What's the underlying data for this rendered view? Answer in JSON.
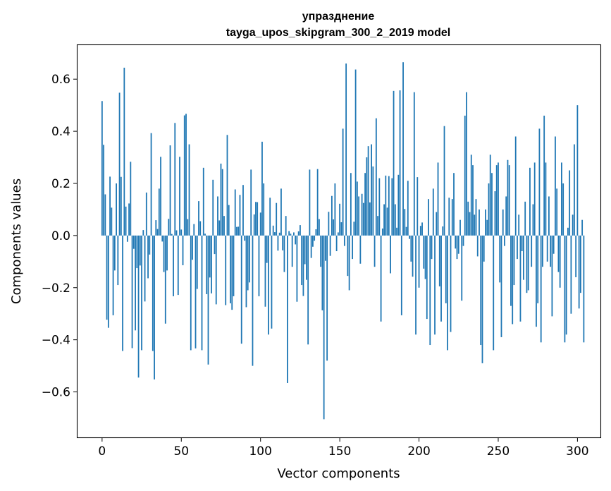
{
  "chart_data": {
    "type": "bar",
    "title": "упразднение",
    "subtitle": "tayga_upos_skipgram_300_2_2019 model",
    "xlabel": "Vector components",
    "ylabel": "Components values",
    "xlim": [
      -15.5,
      314.5
    ],
    "ylim": [
      -0.7745,
      0.7305
    ],
    "xticks": [
      0,
      50,
      100,
      150,
      200,
      250,
      300
    ],
    "yticks": [
      -0.6,
      -0.4,
      -0.2,
      0.0,
      0.2,
      0.4,
      0.6
    ],
    "ytick_labels": [
      "−0.6",
      "−0.4",
      "−0.2",
      "0.0",
      "0.2",
      "0.4",
      "0.6"
    ],
    "xtick_labels": [
      "0",
      "50",
      "100",
      "150",
      "200",
      "250",
      "300"
    ],
    "bar_color": "#1f77b4",
    "grid": false,
    "series": [
      {
        "name": "components",
        "x_start": 0,
        "values": [
          0.516,
          0.348,
          0.158,
          -0.323,
          -0.354,
          0.226,
          0.107,
          -0.306,
          -0.134,
          0.2,
          -0.19,
          0.548,
          0.225,
          -0.443,
          0.644,
          0.111,
          -0.024,
          0.123,
          0.283,
          -0.432,
          -0.051,
          -0.364,
          -0.125,
          -0.545,
          -0.115,
          -0.44,
          0.021,
          -0.253,
          0.165,
          -0.164,
          -0.073,
          0.393,
          -0.443,
          -0.552,
          0.059,
          0.025,
          0.18,
          0.302,
          -0.023,
          -0.14,
          -0.338,
          -0.134,
          0.064,
          0.346,
          0.006,
          -0.233,
          0.432,
          0.02,
          -0.228,
          0.302,
          0.023,
          -0.114,
          0.461,
          0.467,
          0.063,
          0.35,
          -0.44,
          -0.093,
          0.044,
          -0.433,
          -0.205,
          0.132,
          0.055,
          -0.44,
          0.26,
          0.007,
          -0.225,
          -0.495,
          -0.161,
          -0.222,
          0.214,
          -0.071,
          -0.264,
          0.15,
          0.058,
          0.276,
          0.255,
          0.075,
          -0.267,
          0.386,
          0.117,
          -0.26,
          -0.285,
          -0.233,
          0.177,
          0.033,
          0.034,
          0.156,
          -0.415,
          0.194,
          -0.02,
          -0.275,
          -0.21,
          -0.18,
          0.253,
          -0.5,
          0.081,
          0.129,
          0.128,
          -0.233,
          0.088,
          0.36,
          0.2,
          -0.273,
          -0.105,
          -0.38,
          0.145,
          -0.357,
          0.038,
          0.013,
          0.125,
          -0.058,
          0.011,
          0.18,
          -0.057,
          -0.14,
          0.075,
          -0.566,
          0.017,
          0.007,
          -0.12,
          0.012,
          -0.034,
          -0.254,
          0.016,
          0.04,
          -0.19,
          -0.232,
          -0.11,
          -0.17,
          -0.418,
          0.253,
          -0.086,
          -0.043,
          -0.02,
          0.024,
          0.255,
          0.063,
          -0.12,
          -0.287,
          -0.705,
          -0.097,
          -0.48,
          0.091,
          -0.078,
          0.152,
          0.062,
          0.2,
          -0.06,
          0.012,
          0.122,
          0.051,
          0.41,
          -0.04,
          0.66,
          -0.155,
          -0.21,
          0.24,
          -0.09,
          0.053,
          0.637,
          0.207,
          0.15,
          -0.108,
          0.16,
          0.125,
          0.24,
          0.3,
          0.343,
          0.127,
          0.35,
          0.265,
          -0.12,
          0.45,
          0.075,
          0.22,
          -0.33,
          0.027,
          0.12,
          0.23,
          0.107,
          0.228,
          -0.145,
          0.22,
          0.555,
          0.12,
          0.03,
          0.233,
          0.557,
          -0.306,
          0.665,
          0.102,
          0.033,
          0.21,
          -0.013,
          -0.1,
          -0.158,
          0.55,
          -0.38,
          0.224,
          -0.2,
          0.037,
          0.05,
          -0.127,
          -0.167,
          -0.32,
          0.14,
          -0.42,
          -0.09,
          0.18,
          -0.38,
          0.09,
          0.28,
          -0.195,
          -0.33,
          0.035,
          0.42,
          -0.26,
          -0.44,
          0.145,
          -0.37,
          0.14,
          0.24,
          -0.05,
          -0.09,
          -0.07,
          0.06,
          -0.25,
          -0.04,
          0.46,
          0.55,
          0.13,
          0.09,
          0.31,
          0.27,
          0.08,
          0.14,
          -0.08,
          0.1,
          -0.42,
          -0.49,
          -0.1,
          0.1,
          0.06,
          0.2,
          0.31,
          0.24,
          -0.44,
          0.17,
          0.27,
          0.28,
          -0.18,
          -0.39,
          0.1,
          -0.04,
          0.15,
          0.29,
          0.27,
          -0.27,
          -0.34,
          -0.19,
          0.38,
          -0.09,
          0.08,
          -0.33,
          -0.06,
          -0.17,
          0.13,
          -0.22,
          -0.21,
          0.26,
          -0.12,
          0.12,
          0.28,
          -0.35,
          -0.26,
          0.41,
          -0.41,
          -0.12,
          0.46,
          0.28,
          -0.1,
          0.15,
          -0.12,
          -0.31,
          -0.07,
          0.38,
          0.18,
          -0.14,
          -0.2,
          0.28,
          0.2,
          -0.41,
          -0.38,
          0.03,
          0.25,
          -0.3,
          0.08,
          0.35,
          -0.16,
          0.5,
          -0.28,
          -0.22,
          0.06,
          -0.41
        ]
      }
    ]
  }
}
